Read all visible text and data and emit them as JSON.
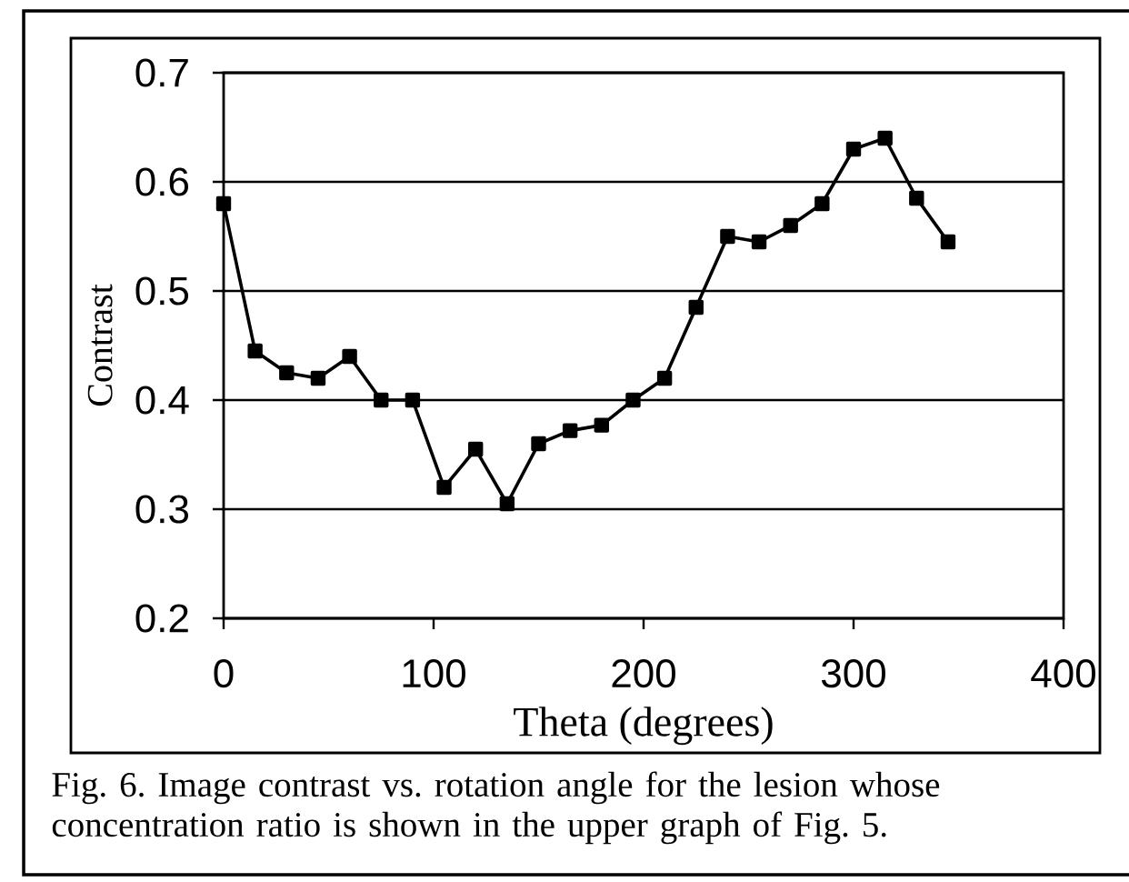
{
  "chart_data": {
    "type": "line",
    "xlabel": "Theta (degrees)",
    "ylabel": "Contrast",
    "x": [
      0,
      15,
      30,
      45,
      60,
      75,
      90,
      105,
      120,
      135,
      150,
      165,
      180,
      195,
      210,
      225,
      240,
      255,
      270,
      285,
      300,
      315,
      330,
      345
    ],
    "series": [
      {
        "color": "#000000",
        "values": [
          0.58,
          0.445,
          0.425,
          0.42,
          0.44,
          0.4,
          0.4,
          0.32,
          0.355,
          0.305,
          0.36,
          0.372,
          0.377,
          0.4,
          0.42,
          0.485,
          0.55,
          0.545,
          0.56,
          0.58,
          0.63,
          0.64,
          0.585,
          0.545
        ]
      }
    ],
    "xlim": [
      0,
      400
    ],
    "ylim": [
      0.2,
      0.7
    ],
    "xticks": [
      0,
      100,
      200,
      300,
      400
    ],
    "yticks": [
      0.2,
      0.3,
      0.4,
      0.5,
      0.6,
      0.7
    ],
    "grid": "y",
    "marker": "square",
    "line_style": "solid",
    "annotations": [
      "Fig. 6. Image contrast vs. rotation angle for the lesion whose concentration ratio is shown in the upper graph of Fig. 5."
    ]
  }
}
